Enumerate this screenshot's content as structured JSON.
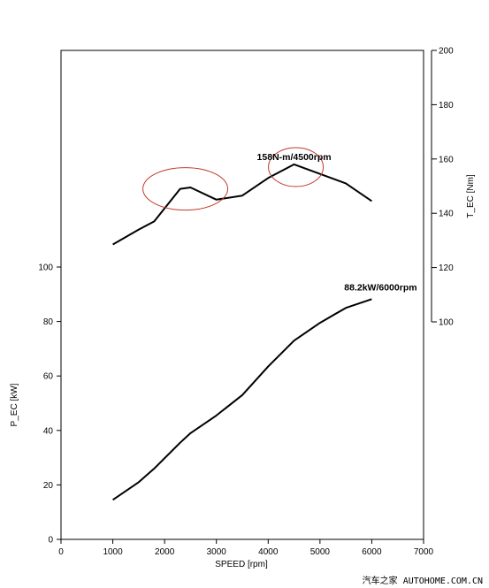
{
  "chart_data": {
    "type": "line",
    "xlabel": "SPEED [rpm]",
    "ylabel_left": "P_EC [kW]",
    "ylabel_right": "T_EC [Nm]",
    "xlim": [
      0,
      7000
    ],
    "ylim_left": [
      0,
      100
    ],
    "ylim_right": [
      100,
      200
    ],
    "x_ticks": [
      0,
      1000,
      2000,
      3000,
      4000,
      5000,
      6000,
      7000
    ],
    "y_left_ticks": [
      0,
      20,
      40,
      60,
      80,
      100
    ],
    "y_right_ticks": [
      100,
      120,
      140,
      160,
      180,
      200
    ],
    "grid": false,
    "series": [
      {
        "axis": "left",
        "x": [
          1000,
          1500,
          1800,
          2300,
          2500,
          3000,
          3500,
          4000,
          4500,
          5000,
          5500,
          6000
        ],
        "values": [
          14.5,
          21,
          26,
          35.5,
          39,
          45.5,
          53,
          63.5,
          73,
          79.5,
          85,
          88.2
        ]
      },
      {
        "axis": "right",
        "x": [
          1000,
          1500,
          1800,
          2300,
          2500,
          3000,
          3500,
          4000,
          4500,
          5000,
          5500,
          6000
        ],
        "values": [
          128.5,
          134,
          137,
          149,
          149.5,
          145,
          146.5,
          153,
          158,
          154.5,
          151,
          144.5
        ]
      }
    ],
    "annotations": [
      {
        "text": "158N-m/4500rpm",
        "x": 4500,
        "value": 158,
        "axis": "right",
        "circled": true
      },
      {
        "text": "88.2kW/6000rpm",
        "x": 6000,
        "value": 88.2,
        "axis": "left",
        "circled": false
      }
    ],
    "highlight": {
      "x_center": 2400,
      "value_center": 149,
      "axis": "right"
    },
    "highlight_color": "#c0392b"
  },
  "watermark": "汽车之家 AUTOHOME.COM.CN"
}
